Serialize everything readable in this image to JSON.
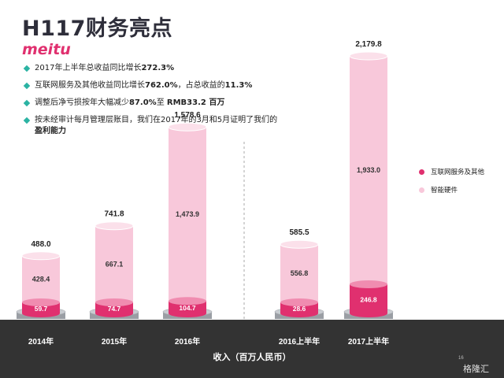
{
  "header": {
    "title": "H117财务亮点",
    "logo_text": "meitu"
  },
  "bullets": [
    {
      "pre": "2017年上半年总收益同比增长",
      "bold": "272.3%",
      "post": ""
    },
    {
      "pre": "互联网服务及其他收益同比增长",
      "bold": "762.0%",
      "post": "，占总收益的",
      "bold2": "11.3%"
    },
    {
      "pre": "调整后净亏损按年大幅减少",
      "bold": "87.0%",
      "post": "至 ",
      "bold2": "RMB33.2 百万"
    },
    {
      "pre": "按未经审计每月管理层账目，我们在2017年的3月和5月证明了我们的",
      "bold": "盈利能力",
      "post": ""
    }
  ],
  "legend": {
    "internet_label": "互联网服务及其他",
    "hardware_label": "智能硬件"
  },
  "footer": {
    "axis_title": "收入（百万人民币）",
    "page_number": "16",
    "watermark": "格隆汇"
  },
  "colors": {
    "internet": "#e0306f",
    "hardware": "#f8c8da",
    "teal": "#2bb3a3",
    "band": "#333333"
  },
  "chart_data": {
    "type": "bar",
    "stacked": true,
    "title": "H117财务亮点",
    "xlabel": "收入（百万人民币）",
    "categories": [
      "2014年",
      "2015年",
      "2016年",
      "2016上半年",
      "2017上半年"
    ],
    "series": [
      {
        "name": "互联网服务及其他",
        "values": [
          59.7,
          74.7,
          104.7,
          28.6,
          246.8
        ]
      },
      {
        "name": "智能硬件",
        "values": [
          428.4,
          667.1,
          1473.9,
          556.8,
          1933.0
        ]
      }
    ],
    "totals": [
      488.0,
      741.8,
      1578.6,
      585.5,
      2179.8
    ],
    "value_labels": {
      "internet": [
        "59.7",
        "74.7",
        "104.7",
        "28.6",
        "246.8"
      ],
      "hardware": [
        "428.4",
        "667.1",
        "1,473.9",
        "556.8",
        "1,933.0"
      ],
      "totals": [
        "488.0",
        "741.8",
        "1,578.6",
        "585.5",
        "2,179.8"
      ]
    },
    "legend_position": "right",
    "grid": false
  }
}
